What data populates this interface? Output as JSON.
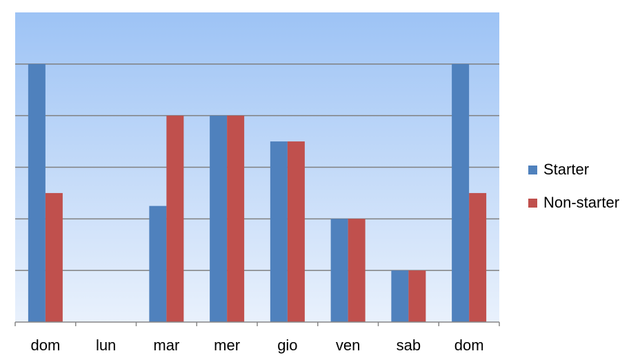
{
  "chart_data": {
    "type": "bar",
    "categories": [
      "dom",
      "lun",
      "mar",
      "mer",
      "gio",
      "ven",
      "sab",
      "dom"
    ],
    "series": [
      {
        "name": "Starter",
        "color": "#4F81BD",
        "values": [
          5,
          0,
          2.25,
          4,
          3.5,
          2,
          1,
          5
        ]
      },
      {
        "name": "Non-starter",
        "color": "#C0504D",
        "values": [
          2.5,
          0,
          4,
          4,
          3.5,
          2,
          1,
          2.5
        ]
      }
    ],
    "ylim": [
      0,
      6
    ],
    "grid": true,
    "legend": "right",
    "plot_background": {
      "top": "#9DC3F5",
      "bottom": "#E9F1FC"
    },
    "gridline_color": "#7F7F7F"
  }
}
